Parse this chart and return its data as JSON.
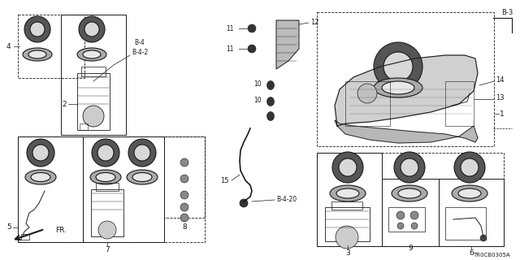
{
  "bg_color": "#ffffff",
  "line_color": "#1a1a1a",
  "fig_width": 6.4,
  "fig_height": 3.2,
  "dpi": 100,
  "part_number": "TR0CB0305A",
  "gray_fill": "#cccccc",
  "light_gray": "#e0e0e0"
}
